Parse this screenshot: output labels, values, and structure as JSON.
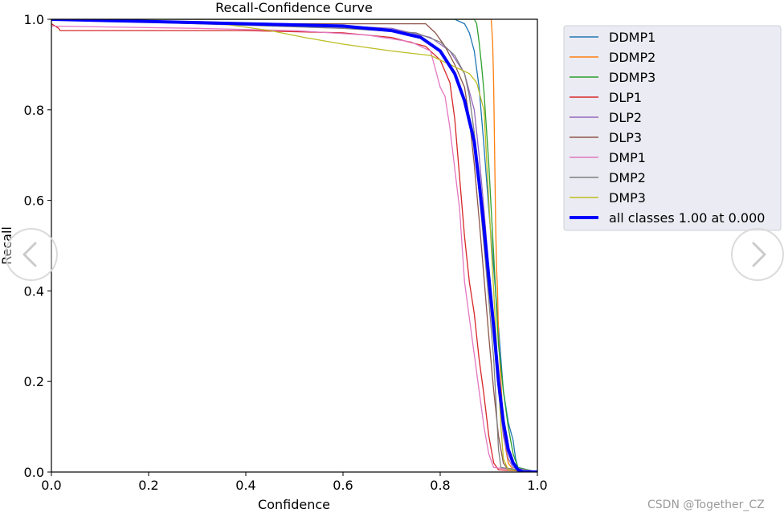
{
  "chart_data": {
    "type": "line",
    "title": "Recall-Confidence Curve",
    "xlabel": "Confidence",
    "ylabel": "Recall",
    "xlim": [
      0,
      1
    ],
    "ylim": [
      0,
      1
    ],
    "xticks": [
      "0.0",
      "0.2",
      "0.4",
      "0.6",
      "0.8",
      "1.0"
    ],
    "yticks": [
      "0.0",
      "0.2",
      "0.4",
      "0.6",
      "0.8",
      "1.0"
    ],
    "grid": false,
    "legend_position": "outside-right-top",
    "series": [
      {
        "name": "DDMP1",
        "color": "#1f77b4",
        "width": 1.3,
        "points": [
          [
            0,
            1
          ],
          [
            0.83,
            1
          ],
          [
            0.85,
            0.99
          ],
          [
            0.86,
            0.97
          ],
          [
            0.87,
            0.93
          ],
          [
            0.88,
            0.85
          ],
          [
            0.89,
            0.72
          ],
          [
            0.9,
            0.58
          ],
          [
            0.91,
            0.45
          ],
          [
            0.92,
            0.32
          ],
          [
            0.925,
            0.25
          ],
          [
            0.93,
            0.18
          ],
          [
            0.94,
            0.11
          ],
          [
            0.95,
            0.07
          ],
          [
            0.955,
            0.03
          ],
          [
            0.96,
            0.01
          ],
          [
            1,
            0
          ]
        ]
      },
      {
        "name": "DDMP2",
        "color": "#ff7f0e",
        "width": 1.3,
        "points": [
          [
            0,
            1
          ],
          [
            0.905,
            1
          ],
          [
            0.908,
            0.95
          ],
          [
            0.91,
            0.85
          ],
          [
            0.912,
            0.7
          ],
          [
            0.914,
            0.55
          ],
          [
            0.916,
            0.45
          ],
          [
            0.918,
            0.4
          ],
          [
            0.92,
            0.3
          ],
          [
            0.925,
            0.2
          ],
          [
            0.93,
            0.1
          ],
          [
            0.935,
            0.05
          ],
          [
            0.94,
            0.02
          ],
          [
            0.95,
            0.005
          ],
          [
            1,
            0
          ]
        ]
      },
      {
        "name": "DDMP3",
        "color": "#2ca02c",
        "width": 1.3,
        "points": [
          [
            0,
            1
          ],
          [
            0.87,
            1
          ],
          [
            0.875,
            0.99
          ],
          [
            0.88,
            0.95
          ],
          [
            0.885,
            0.9
          ],
          [
            0.89,
            0.84
          ],
          [
            0.895,
            0.76
          ],
          [
            0.9,
            0.68
          ],
          [
            0.905,
            0.58
          ],
          [
            0.91,
            0.48
          ],
          [
            0.915,
            0.38
          ],
          [
            0.92,
            0.28
          ],
          [
            0.93,
            0.18
          ],
          [
            0.94,
            0.1
          ],
          [
            0.95,
            0.04
          ],
          [
            0.96,
            0.01
          ],
          [
            1,
            0
          ]
        ]
      },
      {
        "name": "DLP1",
        "color": "#d62728",
        "width": 1.3,
        "points": [
          [
            0,
            0.99
          ],
          [
            0.015,
            0.98
          ],
          [
            0.018,
            0.975
          ],
          [
            0.4,
            0.975
          ],
          [
            0.6,
            0.97
          ],
          [
            0.7,
            0.96
          ],
          [
            0.77,
            0.94
          ],
          [
            0.8,
            0.91
          ],
          [
            0.82,
            0.86
          ],
          [
            0.83,
            0.78
          ],
          [
            0.84,
            0.65
          ],
          [
            0.85,
            0.52
          ],
          [
            0.86,
            0.42
          ],
          [
            0.87,
            0.35
          ],
          [
            0.88,
            0.25
          ],
          [
            0.89,
            0.17
          ],
          [
            0.9,
            0.08
          ],
          [
            0.91,
            0.02
          ],
          [
            0.92,
            0.005
          ],
          [
            1,
            0
          ]
        ]
      },
      {
        "name": "DLP2",
        "color": "#9467bd",
        "width": 1.3,
        "points": [
          [
            0,
            1
          ],
          [
            0.5,
            0.99
          ],
          [
            0.7,
            0.98
          ],
          [
            0.78,
            0.96
          ],
          [
            0.82,
            0.93
          ],
          [
            0.85,
            0.88
          ],
          [
            0.87,
            0.8
          ],
          [
            0.88,
            0.7
          ],
          [
            0.89,
            0.58
          ],
          [
            0.9,
            0.45
          ],
          [
            0.91,
            0.3
          ],
          [
            0.92,
            0.18
          ],
          [
            0.93,
            0.08
          ],
          [
            0.94,
            0.03
          ],
          [
            0.95,
            0.01
          ],
          [
            1,
            0
          ]
        ]
      },
      {
        "name": "DLP3",
        "color": "#8c564b",
        "width": 1.3,
        "points": [
          [
            0,
            1
          ],
          [
            0.4,
            0.99
          ],
          [
            0.77,
            0.99
          ],
          [
            0.79,
            0.97
          ],
          [
            0.81,
            0.94
          ],
          [
            0.83,
            0.9
          ],
          [
            0.85,
            0.85
          ],
          [
            0.86,
            0.78
          ],
          [
            0.87,
            0.68
          ],
          [
            0.88,
            0.56
          ],
          [
            0.89,
            0.43
          ],
          [
            0.9,
            0.3
          ],
          [
            0.91,
            0.18
          ],
          [
            0.92,
            0.08
          ],
          [
            0.93,
            0.02
          ],
          [
            0.94,
            0.005
          ],
          [
            1,
            0
          ]
        ]
      },
      {
        "name": "DMP1",
        "color": "#e377c2",
        "width": 1.3,
        "points": [
          [
            0,
            0.985
          ],
          [
            0.3,
            0.98
          ],
          [
            0.5,
            0.975
          ],
          [
            0.65,
            0.965
          ],
          [
            0.74,
            0.95
          ],
          [
            0.78,
            0.93
          ],
          [
            0.79,
            0.89
          ],
          [
            0.8,
            0.85
          ],
          [
            0.81,
            0.83
          ],
          [
            0.82,
            0.76
          ],
          [
            0.83,
            0.67
          ],
          [
            0.84,
            0.58
          ],
          [
            0.845,
            0.5
          ],
          [
            0.85,
            0.42
          ],
          [
            0.86,
            0.34
          ],
          [
            0.87,
            0.26
          ],
          [
            0.88,
            0.18
          ],
          [
            0.89,
            0.1
          ],
          [
            0.9,
            0.04
          ],
          [
            0.91,
            0.01
          ],
          [
            1,
            0
          ]
        ]
      },
      {
        "name": "DMP2",
        "color": "#7f7f7f",
        "width": 1.3,
        "points": [
          [
            0,
            1
          ],
          [
            0.3,
            0.99
          ],
          [
            0.6,
            0.98
          ],
          [
            0.75,
            0.97
          ],
          [
            0.8,
            0.95
          ],
          [
            0.83,
            0.92
          ],
          [
            0.85,
            0.88
          ],
          [
            0.86,
            0.83
          ],
          [
            0.87,
            0.75
          ],
          [
            0.88,
            0.62
          ],
          [
            0.89,
            0.5
          ],
          [
            0.9,
            0.38
          ],
          [
            0.91,
            0.25
          ],
          [
            0.915,
            0.15
          ],
          [
            0.92,
            0.05
          ],
          [
            0.925,
            0.01
          ],
          [
            1,
            0
          ]
        ]
      },
      {
        "name": "DMP3",
        "color": "#bcbd22",
        "width": 1.3,
        "points": [
          [
            0,
            1
          ],
          [
            0.35,
            0.99
          ],
          [
            0.45,
            0.975
          ],
          [
            0.52,
            0.96
          ],
          [
            0.6,
            0.945
          ],
          [
            0.7,
            0.93
          ],
          [
            0.78,
            0.92
          ],
          [
            0.82,
            0.9
          ],
          [
            0.86,
            0.88
          ],
          [
            0.875,
            0.86
          ],
          [
            0.885,
            0.82
          ],
          [
            0.89,
            0.8
          ],
          [
            0.895,
            0.7
          ],
          [
            0.9,
            0.6
          ],
          [
            0.905,
            0.5
          ],
          [
            0.91,
            0.4
          ],
          [
            0.915,
            0.3
          ],
          [
            0.92,
            0.2
          ],
          [
            0.925,
            0.1
          ],
          [
            0.93,
            0.03
          ],
          [
            0.94,
            0.005
          ],
          [
            1,
            0
          ]
        ]
      },
      {
        "name": "all classes 1.00 at 0.000",
        "color": "#0000ff",
        "width": 4,
        "points": [
          [
            0,
            1
          ],
          [
            0.2,
            0.995
          ],
          [
            0.4,
            0.99
          ],
          [
            0.6,
            0.985
          ],
          [
            0.7,
            0.975
          ],
          [
            0.76,
            0.96
          ],
          [
            0.8,
            0.93
          ],
          [
            0.83,
            0.88
          ],
          [
            0.85,
            0.82
          ],
          [
            0.87,
            0.73
          ],
          [
            0.88,
            0.64
          ],
          [
            0.89,
            0.54
          ],
          [
            0.9,
            0.43
          ],
          [
            0.91,
            0.32
          ],
          [
            0.92,
            0.2
          ],
          [
            0.93,
            0.11
          ],
          [
            0.94,
            0.05
          ],
          [
            0.95,
            0.02
          ],
          [
            0.96,
            0.005
          ],
          [
            0.97,
            0
          ],
          [
            1,
            0
          ]
        ]
      }
    ]
  },
  "nav": {
    "prev_label": "previous",
    "next_label": "next"
  },
  "watermark": "CSDN @Together_CZ"
}
